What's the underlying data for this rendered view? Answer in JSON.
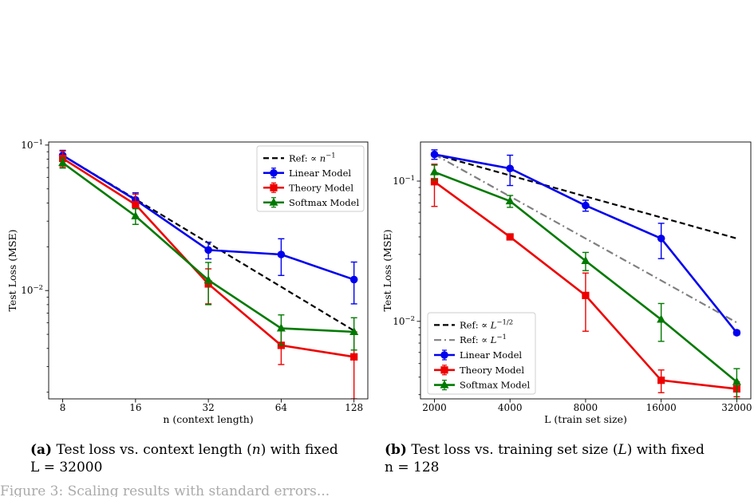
{
  "figure": {
    "panel_a_caption": {
      "tag": "(a)",
      "text_line1": "Test loss vs. context length (",
      "var": "n",
      "text_line1_end": ") with fixed",
      "line2": "L = 32000"
    },
    "panel_b_caption": {
      "tag": "(b)",
      "text_line1": "Test loss vs. training set size (",
      "var": "L",
      "text_line1_end": ") with fixed",
      "line2": "n = 128"
    },
    "footer_text": "Figure 3: Scaling results with standard errors..."
  },
  "colors": {
    "linear": "#0000ee",
    "theory": "#ee0000",
    "softmax": "#007a00",
    "ref1": "#000000",
    "ref2": "#808080"
  },
  "chart_data": [
    {
      "type": "line",
      "xlabel": "n (context length)",
      "ylabel": "Test Loss (MSE)",
      "xscale": "log2",
      "yscale": "log",
      "x": [
        8,
        16,
        32,
        64,
        128
      ],
      "x_tick_labels": [
        "8",
        "16",
        "32",
        "64",
        "128"
      ],
      "ylim": [
        0.0018,
        0.105
      ],
      "y_ticks": [
        {
          "value": 0.1,
          "label": "10^-1"
        },
        {
          "value": 0.01,
          "label": "10^-2"
        }
      ],
      "legend_position": "top-right",
      "series": [
        {
          "name": "Ref: ∝ n^-1",
          "kind": "ref",
          "color": "#000000",
          "dash": "dashed",
          "x": [
            8,
            128
          ],
          "values": [
            0.085,
            0.0053
          ]
        },
        {
          "name": "Linear Model",
          "kind": "model",
          "marker": "circle",
          "color": "#0000ee",
          "values": [
            0.085,
            0.042,
            0.019,
            0.0177,
            0.0119
          ],
          "err": [
            0.007,
            0.005,
            0.0025,
            0.005,
            0.0038
          ]
        },
        {
          "name": "Theory Model",
          "kind": "model",
          "marker": "square",
          "color": "#ee0000",
          "values": [
            0.081,
            0.039,
            0.0111,
            0.0042,
            0.0035
          ],
          "err": [
            0.01,
            0.007,
            0.003,
            0.0011,
            0.0017
          ]
        },
        {
          "name": "Softmax Model",
          "kind": "model",
          "marker": "triangle",
          "color": "#007a00",
          "values": [
            0.0755,
            0.0325,
            0.0118,
            0.0055,
            0.0052
          ],
          "err": [
            0.006,
            0.004,
            0.0038,
            0.0013,
            0.0013
          ]
        }
      ]
    },
    {
      "type": "line",
      "xlabel": "L (train set size)",
      "ylabel": "Test Loss (MSE)",
      "xscale": "log",
      "yscale": "log",
      "x": [
        2000,
        4000,
        8000,
        16000,
        32000
      ],
      "x_tick_labels": [
        "2000",
        "4000",
        "8000",
        "16000",
        "32000"
      ],
      "ylim": [
        0.0028,
        0.19
      ],
      "y_ticks": [
        {
          "value": 0.1,
          "label": "10^-1"
        },
        {
          "value": 0.01,
          "label": "10^-2"
        }
      ],
      "legend_position": "bottom-left",
      "series": [
        {
          "name": "Ref: ∝ L^-1/2",
          "kind": "ref",
          "color": "#000000",
          "dash": "dashed",
          "x": [
            2000,
            32000
          ],
          "values": [
            0.155,
            0.039
          ]
        },
        {
          "name": "Ref: ∝ L^-1",
          "kind": "ref",
          "color": "#808080",
          "dash": "dashdot",
          "x": [
            2000,
            32000
          ],
          "values": [
            0.155,
            0.0098
          ]
        },
        {
          "name": "Linear Model",
          "kind": "model",
          "marker": "circle",
          "color": "#0000ee",
          "values": [
            0.155,
            0.123,
            0.067,
            0.039,
            0.0083
          ],
          "err": [
            0.012,
            0.03,
            0.006,
            0.011,
            0.0003
          ]
        },
        {
          "name": "Theory Model",
          "kind": "model",
          "marker": "square",
          "color": "#ee0000",
          "values": [
            0.099,
            0.04,
            0.0153,
            0.0038,
            0.0033
          ],
          "err": [
            0.033,
            0.0015,
            0.0068,
            0.0007,
            0.0004
          ]
        },
        {
          "name": "Softmax Model",
          "kind": "model",
          "marker": "triangle",
          "color": "#007a00",
          "values": [
            0.116,
            0.072,
            0.027,
            0.0103,
            0.0037
          ],
          "err": [
            0.014,
            0.007,
            0.004,
            0.0031,
            0.0009
          ]
        }
      ]
    }
  ]
}
